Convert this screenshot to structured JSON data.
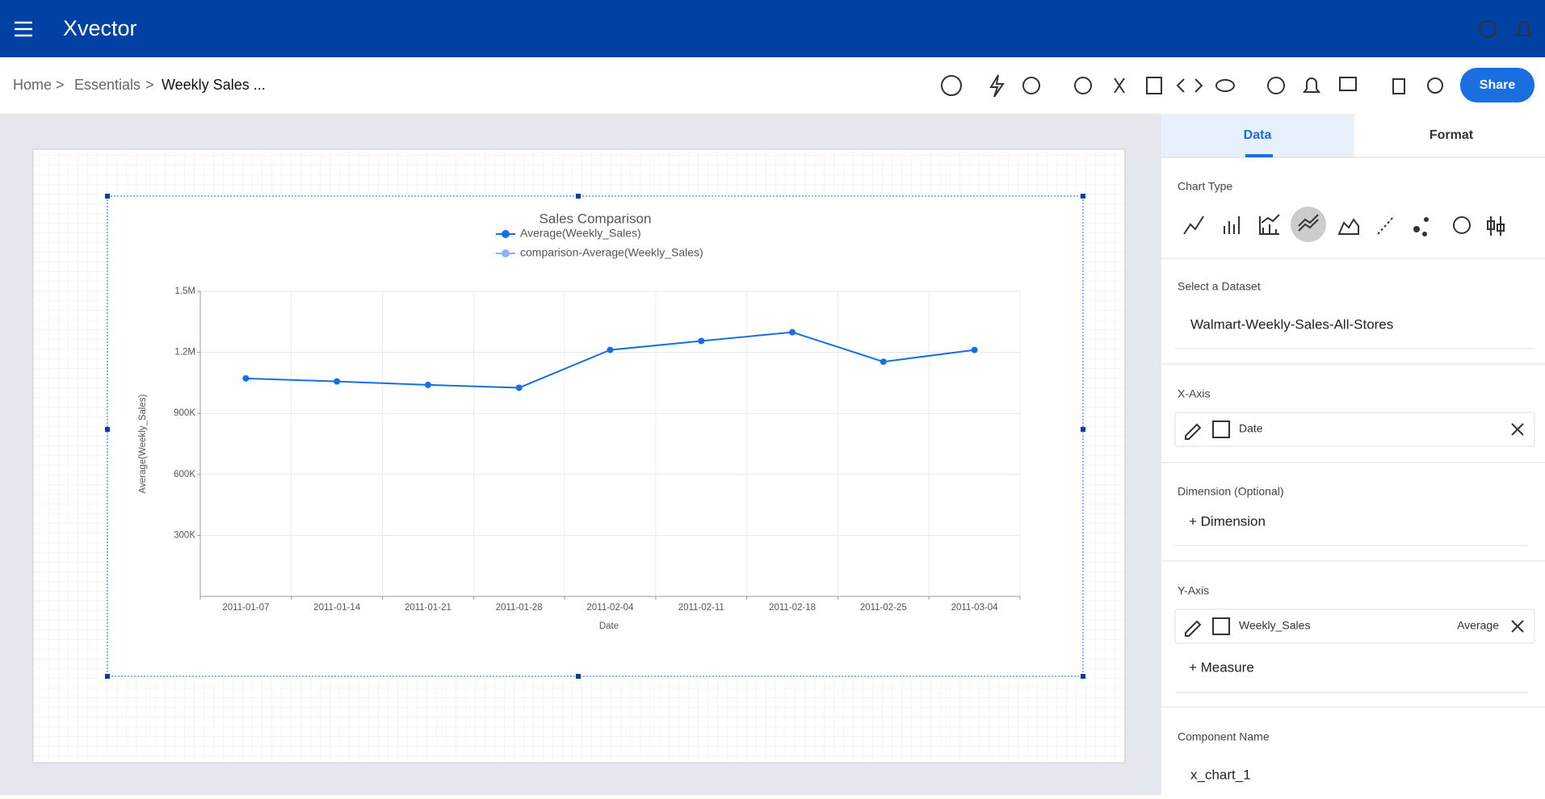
{
  "header": {
    "brand": "Xvector"
  },
  "breadcrumb": [
    "Home",
    "Essentials",
    "Weekly Sales ..."
  ],
  "separators": [
    ">",
    ">"
  ],
  "share": "Share",
  "panel": {
    "tabs": [
      "Data",
      "Format"
    ],
    "chart_type_label": "Chart Type",
    "dataset_label": "Select a Dataset",
    "dataset": "Walmart-Weekly-Sales-All-Stores",
    "x_axis_label": "X-Axis",
    "x_field": "Date",
    "dimension_label": "Dimension (Optional)",
    "add_dimension": "+ Dimension",
    "y_axis_label": "Y-Axis",
    "y_field": "Weekly_Sales",
    "y_aggregate": "Average",
    "add_measure": "+ Measure",
    "component_label": "Component Name",
    "component_name": "x_chart_1"
  },
  "chart_data": {
    "type": "line",
    "title": "Sales Comparison",
    "x_label": "Date",
    "y_label": "Average(Weekly_Sales)",
    "categories": [
      "2011-01-07",
      "2011-01-14",
      "2011-01-21",
      "2011-01-28",
      "2011-02-04",
      "2011-02-11",
      "2011-02-18",
      "2011-02-25",
      "2011-03-04"
    ],
    "series": [
      {
        "name": "Average(Weekly_Sales)",
        "color": "#1a6fe0",
        "values": [
          1072000,
          1057000,
          1040000,
          1026000,
          1212000,
          1256000,
          1299000,
          1154000,
          1212000
        ]
      },
      {
        "name": "comparison-Average(Weekly_Sales)",
        "color": "#8ab4f8",
        "values": [
          null,
          null,
          null,
          null,
          null,
          null,
          null,
          null,
          null
        ]
      }
    ],
    "ylim": [
      0,
      1500000
    ],
    "yticks": [
      {
        "value": 300000,
        "label": "300K"
      },
      {
        "value": 600000,
        "label": "600K"
      },
      {
        "value": 900000,
        "label": "900K"
      },
      {
        "value": 1200000,
        "label": "1.2M"
      },
      {
        "value": 1500000,
        "label": "1.5M"
      }
    ],
    "grid": true
  }
}
